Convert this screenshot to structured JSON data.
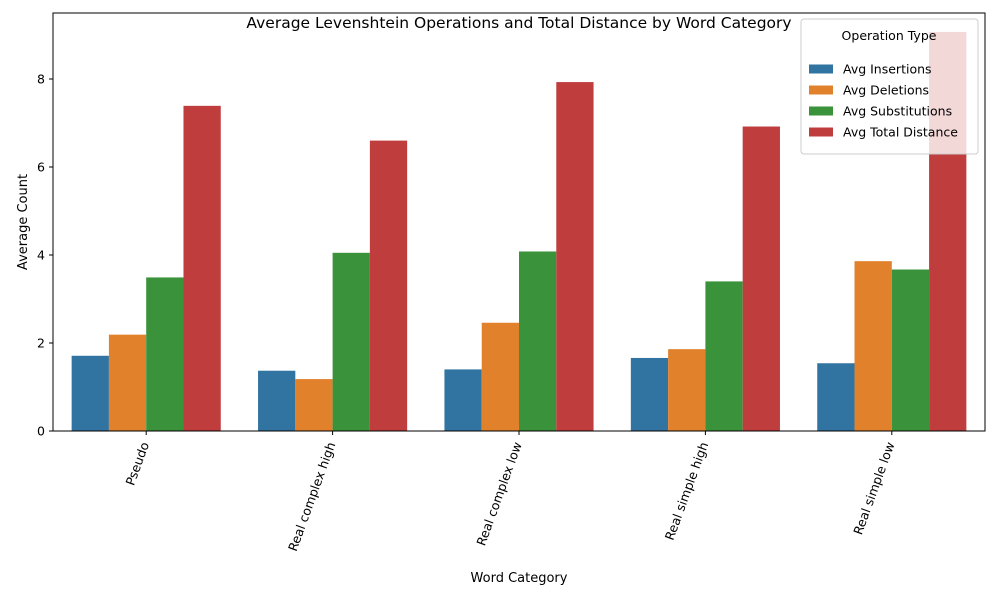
{
  "chart_data": {
    "type": "bar",
    "title": "Average Levenshtein Operations and Total Distance by Word Category",
    "xlabel": "Word Category",
    "ylabel": "Average Count",
    "categories": [
      "Pseudo",
      "Real complex high",
      "Real complex low",
      "Real simple high",
      "Real simple low"
    ],
    "series": [
      {
        "name": "Avg Insertions",
        "color": "#3274a1",
        "values": [
          1.71,
          1.37,
          1.4,
          1.66,
          1.54
        ]
      },
      {
        "name": "Avg Deletions",
        "color": "#e1812c",
        "values": [
          2.19,
          1.18,
          2.46,
          1.86,
          3.86
        ]
      },
      {
        "name": "Avg Substitutions",
        "color": "#3a923a",
        "values": [
          3.49,
          4.05,
          4.08,
          3.4,
          3.67
        ]
      },
      {
        "name": "Avg Total Distance",
        "color": "#c03d3e",
        "values": [
          7.39,
          6.6,
          7.93,
          6.92,
          9.07
        ]
      }
    ],
    "ylim": [
      0,
      9.5
    ],
    "yticks": [
      0,
      2,
      4,
      6,
      8
    ],
    "grid": false,
    "legend": {
      "title": "Operation Type",
      "placement": "top-right"
    }
  }
}
